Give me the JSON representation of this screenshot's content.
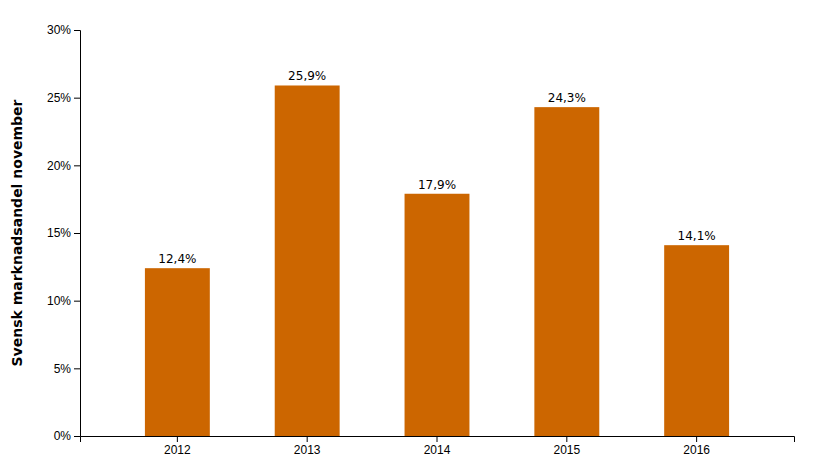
{
  "chart_data": {
    "type": "bar",
    "ylabel": "Svensk marknadsandel november",
    "categories": [
      "2012",
      "2013",
      "2014",
      "2015",
      "2016"
    ],
    "values": [
      0.124,
      0.259,
      0.179,
      0.243,
      0.141
    ],
    "value_labels": [
      "12,4%",
      "25,9%",
      "17,9%",
      "24,3%",
      "14,1%"
    ],
    "color": "#cc6600",
    "ylim": [
      0,
      0.3
    ],
    "yticks": [
      {
        "value": 0.0,
        "label": "0%"
      },
      {
        "value": 0.05,
        "label": "5%"
      },
      {
        "value": 0.1,
        "label": "10%"
      },
      {
        "value": 0.15,
        "label": "15%"
      },
      {
        "value": 0.2,
        "label": "20%"
      },
      {
        "value": 0.25,
        "label": "25%"
      },
      {
        "value": 0.3,
        "label": "30%"
      }
    ],
    "data_labels": true,
    "grid": false
  }
}
